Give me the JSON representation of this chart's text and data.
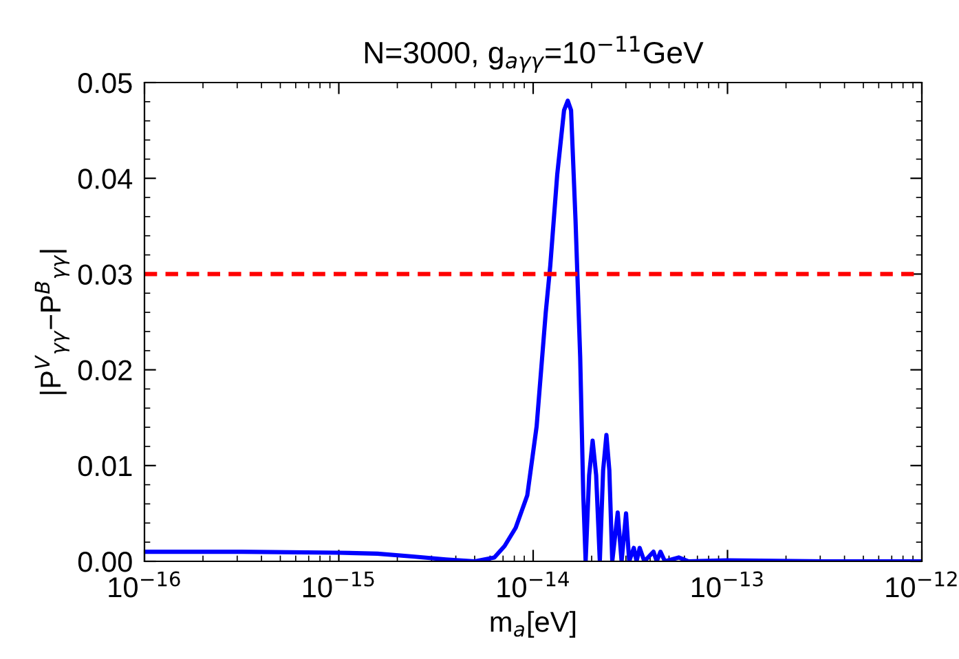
{
  "chart_data": {
    "type": "line",
    "title": "N=3000, g$_{aγγ}$=10$^{−11}$GeV",
    "xlabel": "m$_{a}$[eV]",
    "ylabel": "|P$^{V}$$_{γγ}$−P$^{B}$$_{γγ}$|",
    "log": "x",
    "grid": false,
    "marker": "none",
    "line_style": "solid",
    "xlim": [
      1e-16,
      1e-12
    ],
    "xticks": [
      {
        "value": 1e-16,
        "label": "10$^{−16}$"
      },
      {
        "value": 1e-15,
        "label": "10$^{−15}$"
      },
      {
        "value": 1e-14,
        "label": "10$^{−14}$"
      },
      {
        "value": 1e-13,
        "label": "10$^{−13}$"
      },
      {
        "value": 1e-12,
        "label": "10$^{−12}$"
      }
    ],
    "ylim": [
      0,
      0.05
    ],
    "yticks": [
      {
        "value": 0,
        "label": "0.00"
      },
      {
        "value": 0.01,
        "label": "0.01"
      },
      {
        "value": 0.02,
        "label": "0.02"
      },
      {
        "value": 0.03,
        "label": "0.03"
      },
      {
        "value": 0.04,
        "label": "0.04"
      },
      {
        "value": 0.05,
        "label": "0.05"
      }
    ],
    "ref_lines": [
      {
        "axis": "y",
        "value": 0.03,
        "color": "#ff0000",
        "line_style": "dashed"
      }
    ],
    "series": [
      {
        "color": "#0000ff",
        "x": [
          1e-16,
          3.16e-16,
          1e-15,
          1.58e-15,
          2.4e-15,
          3.55e-15,
          5.01e-15,
          6.31e-15,
          7.13e-15,
          8.13e-15,
          9.33e-15,
          1.042e-14,
          1.161e-14,
          1.225e-14,
          1.33e-14,
          1.442e-14,
          1.507e-14,
          1.567e-14,
          1.652e-14,
          1.746e-14,
          1.811e-14,
          1.862e-14,
          1.941e-14,
          2.023e-14,
          2.109e-14,
          2.203e-14,
          2.291e-14,
          2.382e-14,
          2.466e-14,
          2.553e-14,
          2.723e-14,
          2.851e-14,
          3.006e-14,
          3.119e-14,
          3.296e-14,
          3.404e-14,
          3.532e-14,
          3.733e-14,
          4.159e-14,
          4.325e-14,
          4.519e-14,
          4.764e-14,
          5.61e-14,
          6.31e-14,
          1e-13,
          3.16e-13,
          1e-12
        ],
        "values": [
          0.001,
          0.001,
          0.0009,
          0.0008,
          0.0005,
          0.0002,
          0.0,
          0.0004,
          0.0016,
          0.0035,
          0.0069,
          0.0141,
          0.026,
          0.0309,
          0.0404,
          0.0471,
          0.0481,
          0.0471,
          0.0356,
          0.0213,
          0.0069,
          0.0,
          0.009,
          0.0126,
          0.009,
          0.0,
          0.0095,
          0.0132,
          0.0095,
          0.0,
          0.0051,
          0.0,
          0.005,
          0.0,
          0.0014,
          0.0,
          0.0014,
          0.0,
          0.001,
          0.0,
          0.001,
          0.0,
          0.0004,
          0.0,
          0.0001,
          0.0,
          0.0
        ]
      }
    ]
  }
}
